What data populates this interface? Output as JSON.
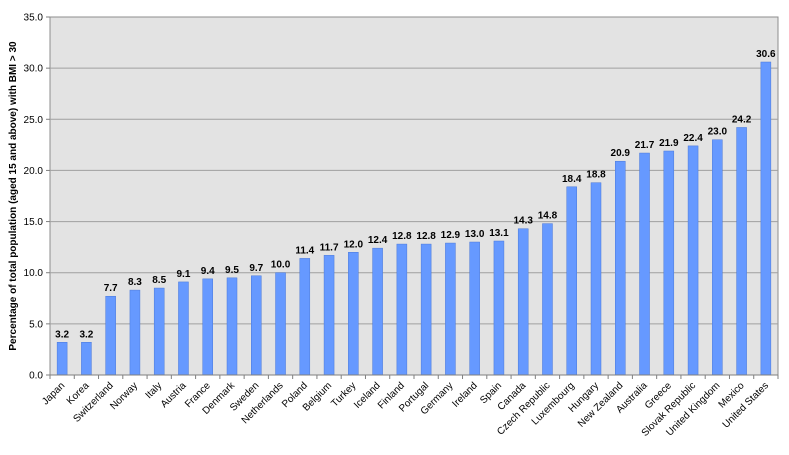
{
  "chart_data": {
    "type": "bar",
    "title": "",
    "xlabel": "",
    "ylabel": "Percentage of total population  (aged 15 and above) with BMI > 30",
    "ylim": [
      0,
      35
    ],
    "yticks": [
      "0.0",
      "5.0",
      "10.0",
      "15.0",
      "20.0",
      "25.0",
      "30.0",
      "35.0"
    ],
    "grid": true,
    "legend": "none",
    "colors": {
      "bar": "#6699ff",
      "bar_stroke": "#4a78d8",
      "plot_bg": "#e3e3e3",
      "grid": "#a0a0a0"
    },
    "categories": [
      "Japan",
      "Korea",
      "Switzerland",
      "Norway",
      "Italy",
      "Austria",
      "France",
      "Denmark",
      "Sweden",
      "Netherlands",
      "Poland",
      "Belgium",
      "Turkey",
      "Iceland",
      "Finland",
      "Portugal",
      "Germany",
      "Ireland",
      "Spain",
      "Canada",
      "Czech Republic",
      "Luxembourg",
      "Hungary",
      "New Zealand",
      "Australia",
      "Greece",
      "Slovak Republic",
      "United Kingdom",
      "Mexico",
      "United States"
    ],
    "values": [
      3.2,
      3.2,
      7.7,
      8.3,
      8.5,
      9.1,
      9.4,
      9.5,
      9.7,
      10.0,
      11.4,
      11.7,
      12.0,
      12.4,
      12.8,
      12.8,
      12.9,
      13.0,
      13.1,
      14.3,
      14.8,
      18.4,
      18.8,
      20.9,
      21.7,
      21.9,
      22.4,
      23.0,
      24.2,
      30.6
    ],
    "data_labels": [
      "3.2",
      "3.2",
      "7.7",
      "8.3",
      "8.5",
      "9.1",
      "9.4",
      "9.5",
      "9.7",
      "10.0",
      "11.4",
      "11.7",
      "12.0",
      "12.4",
      "12.8",
      "12.8",
      "12.9",
      "13.0",
      "13.1",
      "14.3",
      "14.8",
      "18.4",
      "18.8",
      "20.9",
      "21.7",
      "21.9",
      "22.4",
      "23.0",
      "24.2",
      "30.6"
    ]
  }
}
